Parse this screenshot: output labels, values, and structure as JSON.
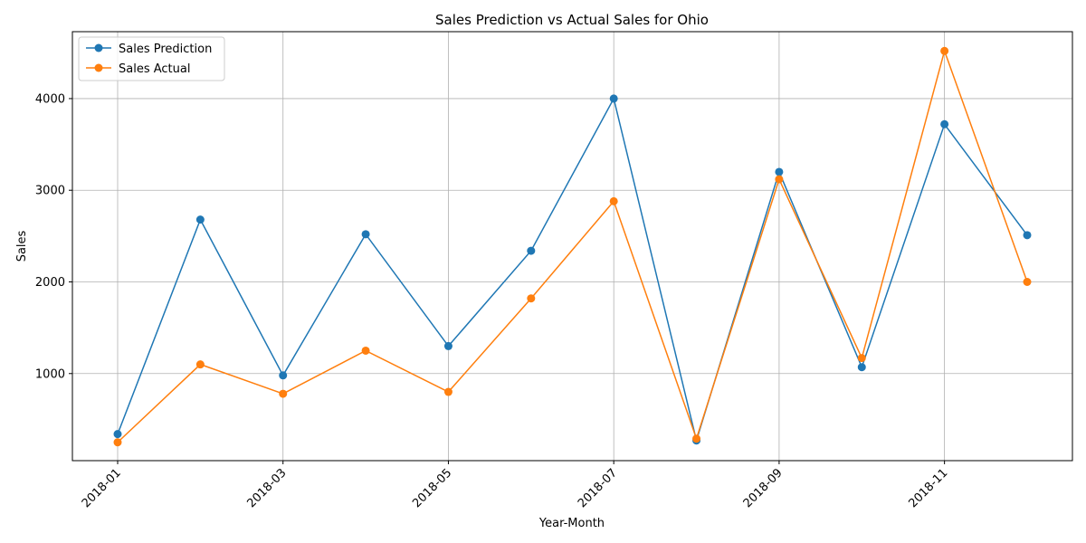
{
  "chart_data": {
    "type": "line",
    "title": "Sales Prediction vs Actual Sales for Ohio",
    "xlabel": "Year-Month",
    "ylabel": "Sales",
    "x": [
      "2018-01",
      "2018-02",
      "2018-03",
      "2018-04",
      "2018-05",
      "2018-06",
      "2018-07",
      "2018-08",
      "2018-09",
      "2018-10",
      "2018-11",
      "2018-12"
    ],
    "x_tick_labels": [
      "2018-01",
      "2018-03",
      "2018-05",
      "2018-07",
      "2018-09",
      "2018-11"
    ],
    "y_ticks": [
      1000,
      2000,
      3000,
      4000
    ],
    "ylim": [
      50,
      4730
    ],
    "grid": true,
    "legend_position": "top-left",
    "series": [
      {
        "name": "Sales Prediction",
        "color": "#1f77b4",
        "marker": "circle",
        "values": [
          340,
          2680,
          980,
          2520,
          1300,
          2340,
          4000,
          270,
          3200,
          1070,
          3720,
          2510
        ]
      },
      {
        "name": "Sales Actual",
        "color": "#ff7f0e",
        "marker": "circle",
        "values": [
          250,
          1100,
          780,
          1250,
          800,
          1820,
          2880,
          290,
          3120,
          1170,
          4520,
          2000
        ]
      }
    ]
  }
}
